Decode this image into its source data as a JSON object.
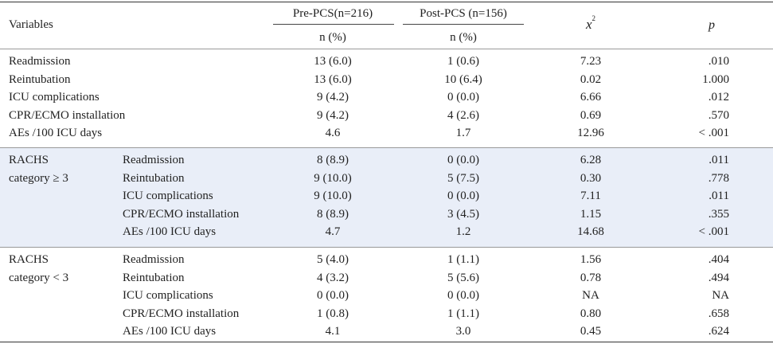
{
  "header": {
    "variables": "Variables",
    "pre_group": "Pre-PCS(n=216)",
    "post_group": "Post-PCS (n=156)",
    "pre_unit": "n (%)",
    "post_unit": "n (%)",
    "chi_symbol": "x",
    "chi_exponent": "2",
    "p_symbol": "p"
  },
  "sections": [
    {
      "category": [],
      "rows": [
        {
          "label": "Readmission",
          "pre": "13 (6.0)",
          "post": "1 (0.6)",
          "chi": "7.23",
          "p": ".010"
        },
        {
          "label": "Reintubation",
          "pre": "13 (6.0)",
          "post": "10 (6.4)",
          "chi": "0.02",
          "p": "1.000"
        },
        {
          "label": "ICU complications",
          "pre": "9 (4.2)",
          "post": "0 (0.0)",
          "chi": "6.66",
          "p": ".012"
        },
        {
          "label": "CPR/ECMO installation",
          "pre": "9 (4.2)",
          "post": "4 (2.6)",
          "chi": "0.69",
          "p": ".570"
        },
        {
          "label": "AEs /100 ICU days",
          "pre": "4.6",
          "post": "1.7",
          "chi": "12.96",
          "p": "< .001"
        }
      ]
    },
    {
      "category": [
        "RACHS",
        "category ≥ 3"
      ],
      "rows": [
        {
          "label": "Readmission",
          "pre": "8 (8.9)",
          "post": "0 (0.0)",
          "chi": "6.28",
          "p": ".011"
        },
        {
          "label": "Reintubation",
          "pre": "9 (10.0)",
          "post": "5 (7.5)",
          "chi": "0.30",
          "p": ".778"
        },
        {
          "label": "ICU complications",
          "pre": "9 (10.0)",
          "post": "0 (0.0)",
          "chi": "7.11",
          "p": ".011"
        },
        {
          "label": "CPR/ECMO installation",
          "pre": "8 (8.9)",
          "post": "3 (4.5)",
          "chi": "1.15",
          "p": ".355"
        },
        {
          "label": "AEs /100 ICU days",
          "pre": "4.7",
          "post": "1.2",
          "chi": "14.68",
          "p": "< .001"
        }
      ]
    },
    {
      "category": [
        "RACHS",
        "category < 3"
      ],
      "rows": [
        {
          "label": "Readmission",
          "pre": "5 (4.0)",
          "post": "1 (1.1)",
          "chi": "1.56",
          "p": ".404"
        },
        {
          "label": "Reintubation",
          "pre": "4 (3.2)",
          "post": "5 (5.6)",
          "chi": "0.78",
          "p": ".494"
        },
        {
          "label": "ICU complications",
          "pre": "0 (0.0)",
          "post": "0 (0.0)",
          "chi": "NA",
          "p": "NA"
        },
        {
          "label": "CPR/ECMO installation",
          "pre": "1 (0.8)",
          "post": "1 (1.1)",
          "chi": "0.80",
          "p": ".658"
        },
        {
          "label": "AEs /100 ICU days",
          "pre": "4.1",
          "post": "3.0",
          "chi": "0.45",
          "p": ".624"
        }
      ]
    }
  ]
}
